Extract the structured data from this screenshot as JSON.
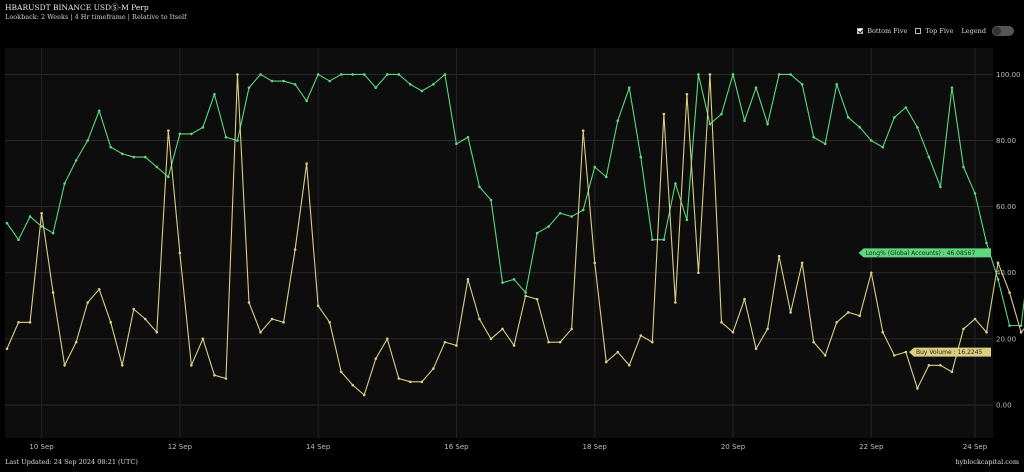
{
  "header": {
    "title": "HBARUSDT BINANCE USDⓈ-M Perp",
    "subtitle": "Lookback: 2 Weeks | 4 Hr timeframe | Relative to Itself"
  },
  "controls": {
    "bottom_five": {
      "label": "Bottom Five",
      "checked": true
    },
    "top_five": {
      "label": "Top Five",
      "checked": false
    },
    "legend_label": "Legend"
  },
  "footer": {
    "last_updated": "Last Updated: 24 Sep 2024 08:21 (UTC)",
    "source": "hyblockcapital.com"
  },
  "chart_data": {
    "type": "line",
    "x_tick_labels": [
      "10 Sep",
      "12 Sep",
      "14 Sep",
      "16 Sep",
      "18 Sep",
      "20 Sep",
      "22 Sep",
      "24 Sep"
    ],
    "x_range": [
      0,
      84
    ],
    "x_ticks": [
      3,
      15,
      27,
      39,
      51,
      63,
      75,
      87
    ],
    "y_ticks": [
      0,
      20,
      40,
      60,
      80,
      100
    ],
    "y_tick_labels": [
      "0.00",
      "20.00",
      "40.00",
      "60.00",
      "80.00",
      "100.00"
    ],
    "ylim": [
      -10,
      108
    ],
    "grid": true,
    "series": [
      {
        "name": "Long% (Global Accounts)",
        "color": "#5ed77f",
        "last_value_label": "46.08567",
        "values": [
          55,
          50,
          57,
          54,
          52,
          67,
          74,
          80,
          89,
          78,
          76,
          75,
          75,
          72,
          69,
          82,
          82,
          84,
          94,
          81,
          80,
          96,
          100,
          98,
          98,
          97,
          92,
          100,
          98,
          100,
          100,
          100,
          96,
          100,
          100,
          97,
          95,
          97,
          100,
          79,
          81,
          66,
          62,
          37,
          38,
          34,
          52,
          54,
          58,
          57,
          59,
          72,
          69,
          86,
          96,
          75,
          50,
          50,
          67,
          56,
          100,
          85,
          88,
          100,
          86,
          96,
          85,
          100,
          100,
          97,
          81,
          79,
          97,
          87,
          84,
          80,
          78,
          87,
          90,
          84,
          75,
          66,
          96,
          72,
          64,
          49,
          38,
          24,
          24,
          52,
          46
        ]
      },
      {
        "name": "Buy Volume",
        "color": "#d9cf86",
        "last_value_label": "16.2245",
        "values": [
          17,
          25,
          25,
          58,
          34,
          12,
          19,
          31,
          35,
          25,
          12,
          29,
          26,
          22,
          83,
          46,
          12,
          20,
          9,
          8,
          100,
          31,
          22,
          26,
          25,
          47,
          73,
          30,
          25,
          10,
          6,
          3,
          14,
          20,
          8,
          7,
          7,
          11,
          19,
          18,
          38,
          26,
          20,
          23,
          18,
          33,
          32,
          19,
          19,
          23,
          83,
          43,
          13,
          16,
          12,
          21,
          19,
          88,
          31,
          94,
          40,
          100,
          25,
          22,
          32,
          17,
          23,
          45,
          28,
          43,
          19,
          15,
          25,
          28,
          27,
          40,
          22,
          15,
          16,
          5,
          12,
          12,
          10,
          23,
          26,
          22,
          43,
          34,
          22,
          26,
          16
        ]
      }
    ]
  }
}
